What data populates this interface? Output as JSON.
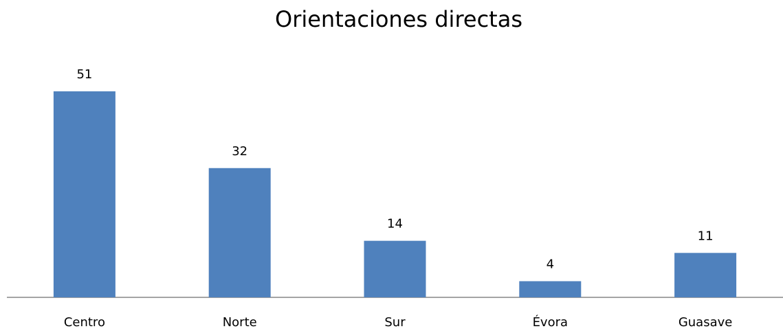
{
  "chart_data": {
    "type": "bar",
    "title": "Orientaciones directas",
    "categories": [
      "Centro",
      "Norte",
      "Sur",
      "Évora",
      "Guasave"
    ],
    "values": [
      51,
      32,
      14,
      4,
      11
    ],
    "color": "#4f81bd"
  }
}
